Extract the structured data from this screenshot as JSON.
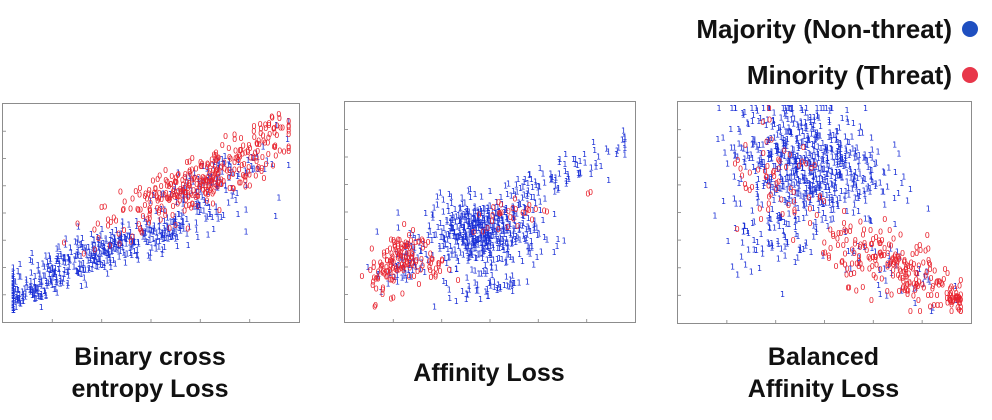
{
  "legend": {
    "majority": {
      "label": "Majority (Non-threat)",
      "marker": "1",
      "color": "#1a2fd6",
      "dot_color": "#1f4fc0"
    },
    "minority": {
      "label": "Minority (Threat)",
      "marker": "0",
      "color": "#e8232e",
      "dot_color": "#e8374a"
    }
  },
  "chart_data": [
    {
      "type": "scatter",
      "caption_lines": [
        "Binary cross",
        "entropy Loss"
      ],
      "xlim": [
        0,
        1
      ],
      "ylim": [
        0,
        1
      ],
      "clusters": [
        {
          "series": "majority",
          "center": [
            0.34,
            0.3
          ],
          "spread": [
            0.22,
            0.05
          ],
          "count": 420,
          "slope": 0.45
        },
        {
          "series": "majority",
          "center": [
            0.1,
            0.11
          ],
          "spread": [
            0.07,
            0.025
          ],
          "count": 80,
          "slope": 0.5
        },
        {
          "series": "majority",
          "center": [
            0.7,
            0.62
          ],
          "spread": [
            0.12,
            0.06
          ],
          "count": 120,
          "slope": 0.7
        },
        {
          "series": "minority",
          "center": [
            0.66,
            0.63
          ],
          "spread": [
            0.16,
            0.07
          ],
          "count": 320,
          "slope": 0.65
        },
        {
          "series": "minority",
          "center": [
            0.92,
            0.9
          ],
          "spread": [
            0.03,
            0.03
          ],
          "count": 20,
          "slope": 0.5
        }
      ]
    },
    {
      "type": "scatter",
      "caption_lines": [
        "Affinity Loss"
      ],
      "xlim": [
        0,
        1
      ],
      "ylim": [
        0,
        1
      ],
      "clusters": [
        {
          "series": "majority",
          "center": [
            0.47,
            0.38
          ],
          "spread": [
            0.1,
            0.08
          ],
          "count": 480,
          "slope": 0.0
        },
        {
          "series": "majority",
          "center": [
            0.66,
            0.6
          ],
          "spread": [
            0.16,
            0.05
          ],
          "count": 120,
          "slope": 0.55
        },
        {
          "series": "majority",
          "center": [
            0.19,
            0.22
          ],
          "spread": [
            0.05,
            0.05
          ],
          "count": 50,
          "slope": 0.6
        },
        {
          "series": "majority",
          "center": [
            0.5,
            0.12
          ],
          "spread": [
            0.06,
            0.02
          ],
          "count": 40,
          "slope": 0.3
        },
        {
          "series": "minority",
          "center": [
            0.17,
            0.26
          ],
          "spread": [
            0.05,
            0.07
          ],
          "count": 130,
          "slope": 0.9
        },
        {
          "series": "minority",
          "center": [
            0.3,
            0.22
          ],
          "spread": [
            0.03,
            0.04
          ],
          "count": 25,
          "slope": 0.3
        },
        {
          "series": "minority",
          "center": [
            0.58,
            0.48
          ],
          "spread": [
            0.08,
            0.04
          ],
          "count": 30,
          "slope": 0.2
        },
        {
          "series": "minority",
          "center": [
            0.86,
            0.58
          ],
          "spread": [
            0.01,
            0.01
          ],
          "count": 2,
          "slope": 0.0
        }
      ]
    },
    {
      "type": "scatter",
      "caption_lines": [
        "Balanced",
        "Affinity Loss"
      ],
      "xlim": [
        0,
        1
      ],
      "ylim": [
        0,
        1
      ],
      "clusters": [
        {
          "series": "majority",
          "center": [
            0.44,
            0.73
          ],
          "spread": [
            0.13,
            0.14
          ],
          "count": 650,
          "slope": -0.2
        },
        {
          "series": "majority",
          "center": [
            0.3,
            0.4
          ],
          "spread": [
            0.08,
            0.1
          ],
          "count": 80,
          "slope": 0.0
        },
        {
          "series": "majority",
          "center": [
            0.72,
            0.22
          ],
          "spread": [
            0.1,
            0.07
          ],
          "count": 40,
          "slope": -0.6
        },
        {
          "series": "minority",
          "center": [
            0.76,
            0.22
          ],
          "spread": [
            0.13,
            0.08
          ],
          "count": 220,
          "slope": -0.55
        },
        {
          "series": "minority",
          "center": [
            0.34,
            0.62
          ],
          "spread": [
            0.09,
            0.12
          ],
          "count": 60,
          "slope": 0.0
        },
        {
          "series": "minority",
          "center": [
            0.96,
            0.06
          ],
          "spread": [
            0.02,
            0.02
          ],
          "count": 25,
          "slope": 0.0
        }
      ]
    }
  ]
}
